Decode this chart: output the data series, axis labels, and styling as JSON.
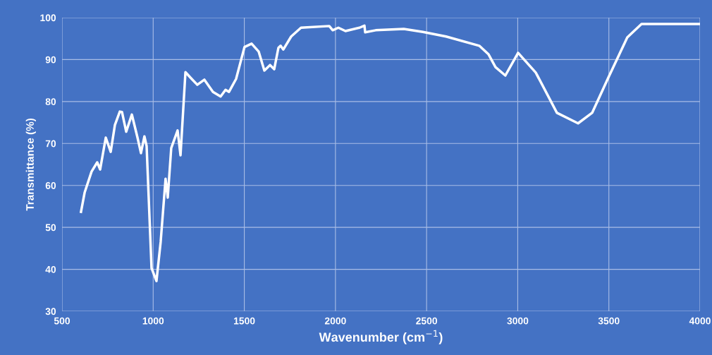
{
  "chart_data": {
    "type": "line",
    "xlabel": "Wavenumber (cm$^{−1}$)",
    "ylabel": "Transmittance (%)",
    "xlim": [
      500,
      4000
    ],
    "xticks": [
      500,
      1000,
      1500,
      2000,
      2500,
      3000,
      3500,
      4000
    ],
    "ylim": [
      30,
      100
    ],
    "yticks": [
      30,
      40,
      50,
      60,
      70,
      80,
      90,
      100
    ],
    "grid": true,
    "marker": "none",
    "line_style": "solid",
    "x": [
      604,
      624,
      662,
      693,
      709,
      740,
      767,
      790,
      817,
      829,
      852,
      883,
      914,
      933,
      952,
      964,
      991,
      1018,
      1041,
      1068,
      1080,
      1099,
      1134,
      1150,
      1177,
      1211,
      1242,
      1281,
      1328,
      1370,
      1397,
      1416,
      1455,
      1501,
      1540,
      1579,
      1610,
      1641,
      1664,
      1687,
      1699,
      1714,
      1757,
      1811,
      1966,
      1985,
      2016,
      2055,
      2132,
      2159,
      2163,
      2221,
      2375,
      2480,
      2607,
      2789,
      2839,
      2878,
      2932,
      3002,
      3099,
      3215,
      3331,
      3408,
      3497,
      3601,
      3679,
      3995
    ],
    "series": [
      {
        "color": "#ffffff",
        "values": [
          53.7,
          58.3,
          63.3,
          65.5,
          63.8,
          71.4,
          68,
          74.4,
          77.6,
          77.5,
          72.8,
          76.9,
          71.4,
          67.7,
          71.7,
          69.4,
          40.3,
          37.2,
          46.5,
          61.6,
          57.1,
          68.9,
          73.1,
          67.2,
          87,
          85.4,
          84,
          85.2,
          82.3,
          81.2,
          82.8,
          82.3,
          85.4,
          93,
          93.8,
          91.9,
          87.4,
          88.7,
          87.7,
          92.8,
          93.3,
          92.4,
          95.5,
          97.6,
          98,
          97,
          97.6,
          96.8,
          97.6,
          98.1,
          96.5,
          97,
          97.3,
          96.6,
          95.5,
          93.3,
          91.3,
          88.2,
          86.2,
          91.6,
          86.9,
          77.3,
          74.8,
          77.3,
          85.7,
          95.3,
          98.5,
          98.5
        ]
      }
    ]
  }
}
